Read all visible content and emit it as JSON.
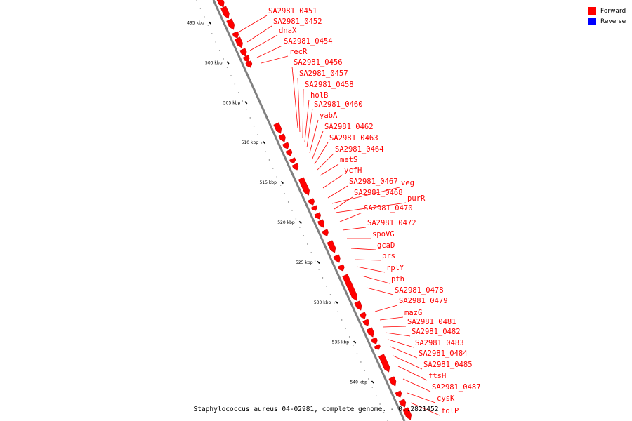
{
  "caption": "Staphylococcus aureus 04-02981, complete genome. - 0..2821452",
  "legend": [
    {
      "label": "Forward",
      "color": "#ff0000"
    },
    {
      "label": "Reverse",
      "color": "#0000ff"
    }
  ],
  "ticks": [
    "495 kbp",
    "500 kbp",
    "505 kbp",
    "510 kbp",
    "515 kbp",
    "520 kbp",
    "525 kbp",
    "530 kbp",
    "535 kbp",
    "540 kbp"
  ],
  "genes": [
    "SA2981_0451",
    "SA2981_0452",
    "dnaX",
    "SA2981_0454",
    "recR",
    "SA2981_0456",
    "SA2981_0457",
    "SA2981_0458",
    "holB",
    "SA2981_0460",
    "yabA",
    "SA2981_0462",
    "SA2981_0463",
    "SA2981_0464",
    "metS",
    "ycfH",
    "SA2981_0467",
    "veg",
    "SA2981_0468",
    "purR",
    "SA2981_0470",
    "SA2981_0472",
    "spoVG",
    "gcaD",
    "prs",
    "rplY",
    "pth",
    "SA2981_0478",
    "SA2981_0479",
    "mazG",
    "SA2981_0481",
    "SA2981_0482",
    "SA2981_0483",
    "SA2981_0484",
    "SA2981_0485",
    "ftsH",
    "SA2981_0487",
    "cysK",
    "folP"
  ],
  "colors": {
    "gene": "#ff0000",
    "label": "#ff0000",
    "backbone": "#808080",
    "tick": "#000000"
  }
}
